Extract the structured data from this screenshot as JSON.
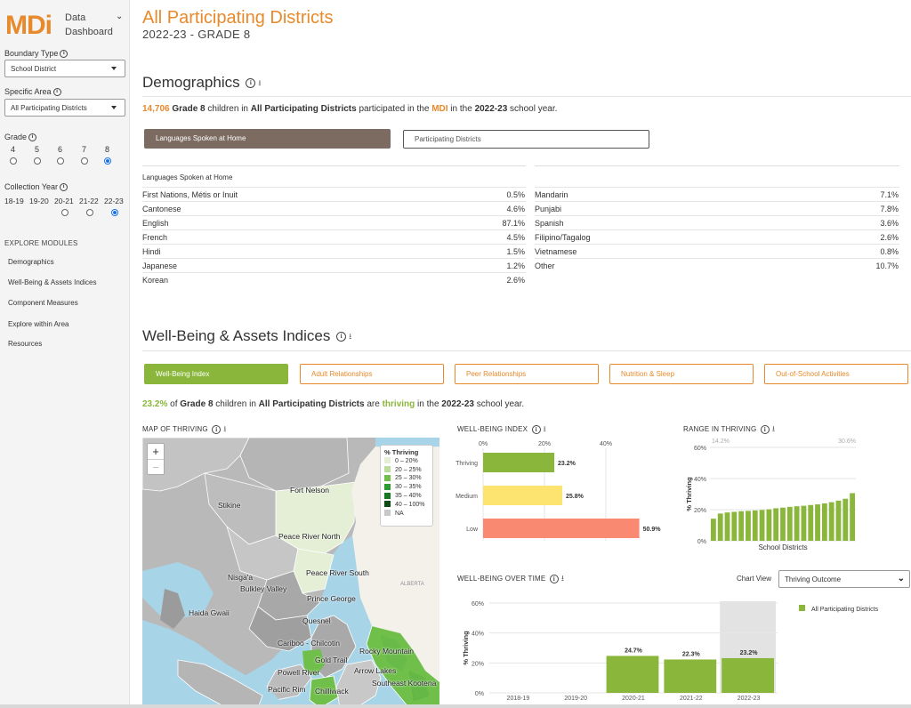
{
  "sidebar": {
    "logo": "MDi",
    "logo_sub": [
      "Data",
      "Dashboard"
    ],
    "boundary_type_label": "Boundary Type",
    "boundary_type_value": "School District",
    "specific_area_label": "Specific Area",
    "specific_area_value": "All Participating Districts",
    "grade_label": "Grade",
    "grades": [
      "4",
      "5",
      "6",
      "7",
      "8"
    ],
    "selected_grade": "8",
    "collection_year_label": "Collection Year",
    "years": [
      "18-19",
      "19-20",
      "20-21",
      "21-22",
      "22-23"
    ],
    "selected_year": "22-23",
    "explore_title": "EXPLORE MODULES",
    "nav": [
      "Demographics",
      "Well-Being & Assets Indices",
      "Component Measures",
      "Explore within Area",
      "Resources"
    ]
  },
  "header": {
    "title": "All Participating Districts",
    "subtitle": "2022-23 - GRADE 8"
  },
  "demographics": {
    "heading": "Demographics",
    "summary": {
      "count": "14,706",
      "grade": "Grade 8",
      "t1": " children in ",
      "area": "All Participating Districts",
      "t2": " participated in the ",
      "mdi": "MDI",
      "t3": " in the ",
      "year": "2022-23",
      "t4": " school year."
    },
    "tab_active": "Languages Spoken at Home",
    "tab_inactive": "Participating Districts",
    "table_header": "Languages Spoken at Home",
    "left_rows": [
      {
        "name": "First Nations, Métis or Inuit",
        "value": "0.5%"
      },
      {
        "name": "Cantonese",
        "value": "4.6%"
      },
      {
        "name": "English",
        "value": "87.1%"
      },
      {
        "name": "French",
        "value": "4.5%"
      },
      {
        "name": "Hindi",
        "value": "1.5%"
      },
      {
        "name": "Japanese",
        "value": "1.2%"
      },
      {
        "name": "Korean",
        "value": "2.6%"
      }
    ],
    "right_rows": [
      {
        "name": "Mandarin",
        "value": "7.1%"
      },
      {
        "name": "Punjabi",
        "value": "7.8%"
      },
      {
        "name": "Spanish",
        "value": "3.6%"
      },
      {
        "name": "Filipino/Tagalog",
        "value": "2.6%"
      },
      {
        "name": "Vietnamese",
        "value": "0.8%"
      },
      {
        "name": "Other",
        "value": "10.7%"
      }
    ]
  },
  "wellbeing": {
    "heading": "Well-Being & Assets Indices",
    "tabs": [
      "Well-Being Index",
      "Adult Relationships",
      "Peer Relationships",
      "Nutrition & Sleep",
      "Out-of-School Activities"
    ],
    "summary": {
      "pct": "23.2%",
      "t1": " of ",
      "grade": "Grade 8",
      "t2": " children in ",
      "area": "All Participating Districts",
      "t3": " are ",
      "thriving": "thriving",
      "t4": " in the ",
      "year": "2022-23",
      "t5": " school year."
    },
    "map_title": "MAP OF THRIVING",
    "index_title": "WELL-BEING INDEX",
    "range_title": "RANGE IN THRIVING",
    "time_title": "WELL-BEING OVER TIME",
    "chart_view_label": "Chart View",
    "chart_view_value": "Thriving Outcome"
  },
  "map": {
    "zoom_in": "+",
    "zoom_out": "−",
    "legend_title": "% Thriving",
    "legend": [
      {
        "label": "0 – 20%",
        "color": "#e4efd6"
      },
      {
        "label": "20 – 25%",
        "color": "#bddb9a"
      },
      {
        "label": "25 – 30%",
        "color": "#6fbf4a"
      },
      {
        "label": "30 – 35%",
        "color": "#2e9a32"
      },
      {
        "label": "35 – 40%",
        "color": "#177a22"
      },
      {
        "label": "40 – 100%",
        "color": "#0b4d14"
      },
      {
        "label": "NA",
        "color": "#c8c8c8"
      }
    ],
    "labels": [
      "Fort Nelson",
      "Stikine",
      "Peace River North",
      "Nisga'a",
      "Peace River South",
      "Bulkley Valley",
      "ALBERTA",
      "Prince George",
      "Haida Gwaii",
      "Quesnel",
      "Cariboo - Chilcotin",
      "Rocky Mountain",
      "Gold Trail",
      "Powell River",
      "Arrow Lakes",
      "Pacific Rim",
      "Chilliwack",
      "Southeast Kootena"
    ]
  },
  "chart_data": [
    {
      "type": "bar",
      "title": "WELL-BEING INDEX",
      "orientation": "horizontal",
      "categories": [
        "Thriving",
        "Medium",
        "Low"
      ],
      "values": [
        23.2,
        25.8,
        50.9
      ],
      "labels": [
        "23.2%",
        "25.8%",
        "50.9%"
      ],
      "colors": [
        "#8ab73b",
        "#fde36f",
        "#fa8972"
      ],
      "x_ticks": [
        "0%",
        "20%",
        "40%"
      ],
      "xlim": [
        0,
        60
      ]
    },
    {
      "type": "bar",
      "title": "RANGE IN THRIVING",
      "xlabel": "School Districts",
      "ylabel": "% Thriving",
      "y_ticks": [
        "0%",
        "20%",
        "40%",
        "60%"
      ],
      "ylim": [
        0,
        60
      ],
      "min_label": "14.2%",
      "max_label": "30.6%",
      "values": [
        14.2,
        17.5,
        18.2,
        18.6,
        19.0,
        19.2,
        19.5,
        19.8,
        20.2,
        20.9,
        21.3,
        21.8,
        22.2,
        22.5,
        23.0,
        23.4,
        24.0,
        24.8,
        25.8,
        27.0,
        30.6
      ],
      "color": "#8ab73b"
    },
    {
      "type": "bar",
      "title": "WELL-BEING OVER TIME",
      "ylabel": "% Thriving",
      "categories": [
        "2018-19",
        "2019-20",
        "2020-21",
        "2021-22",
        "2022-23"
      ],
      "values": [
        null,
        null,
        24.7,
        22.3,
        23.2
      ],
      "labels": [
        "",
        "",
        "24.7%",
        "22.3%",
        "23.2%"
      ],
      "y_ticks": [
        "0%",
        "20%",
        "40%",
        "60%"
      ],
      "ylim": [
        0,
        60
      ],
      "highlight": "2022-23",
      "legend": "All Participating Districts",
      "color": "#8ab73b"
    }
  ]
}
